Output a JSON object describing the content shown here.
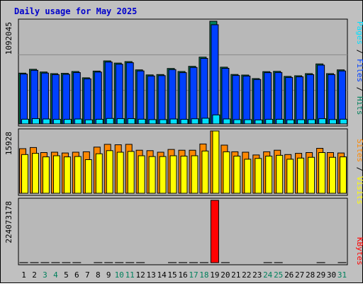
{
  "title": "Daily usage for May 2025",
  "colors": {
    "background": "#c0c0c0",
    "plot_background": "#b8b8b8",
    "title_text": "#0000cc",
    "hits": "#00805c",
    "files": "#0040ff",
    "pages": "#00e0ff",
    "visits": "#ffff00",
    "sites": "#ff8800",
    "kbytes": "#ff0000",
    "weekend_label": "#00805c"
  },
  "legends": {
    "top": [
      {
        "key": "pages",
        "label": "Pages"
      },
      {
        "key": "files",
        "label": "Files"
      },
      {
        "key": "hits",
        "label": "Hits"
      }
    ],
    "middle": [
      {
        "key": "sites",
        "label": "Sites"
      },
      {
        "key": "visits",
        "label": "Visits"
      }
    ],
    "bottom": [
      {
        "key": "kbytes",
        "label": "KBytes"
      }
    ]
  },
  "chart_data": [
    {
      "type": "bar",
      "panel": "hits-files-pages",
      "max_label": "1092045",
      "ylim": [
        0,
        1092045
      ],
      "categories": [
        "1",
        "2",
        "3",
        "4",
        "5",
        "6",
        "7",
        "8",
        "9",
        "10",
        "11",
        "12",
        "13",
        "14",
        "15",
        "16",
        "17",
        "18",
        "19",
        "20",
        "21",
        "22",
        "23",
        "24",
        "25",
        "26",
        "27",
        "28",
        "29",
        "30",
        "31"
      ],
      "weekend_days": [
        "3",
        "4",
        "10",
        "11",
        "17",
        "18",
        "24",
        "25",
        "31"
      ],
      "series": [
        {
          "name": "Hits",
          "color_key": "hits",
          "values": [
            540000,
            581000,
            552000,
            535000,
            538000,
            557000,
            490000,
            562000,
            670000,
            647000,
            663000,
            575000,
            521000,
            525000,
            590000,
            557000,
            612000,
            710000,
            1092045,
            603000,
            526000,
            520000,
            482000,
            556000,
            559000,
            505000,
            512000,
            535000,
            638000,
            535000,
            575000
          ]
        },
        {
          "name": "Files",
          "color_key": "files",
          "values": [
            530000,
            570000,
            541000,
            524000,
            527000,
            546000,
            480000,
            551000,
            658000,
            635000,
            651000,
            563000,
            510000,
            514000,
            578000,
            545000,
            600000,
            697000,
            1055000,
            591000,
            515000,
            509000,
            472000,
            545000,
            547000,
            494000,
            501000,
            524000,
            625000,
            524000,
            563000
          ]
        },
        {
          "name": "Pages",
          "color_key": "pages",
          "values": [
            50000,
            56000,
            52000,
            48000,
            48000,
            52000,
            44000,
            49000,
            58000,
            56000,
            56000,
            50000,
            46000,
            46000,
            52000,
            48000,
            54000,
            60000,
            96000,
            53000,
            46000,
            45000,
            42000,
            48000,
            49000,
            44000,
            45000,
            46000,
            55000,
            47000,
            50000
          ]
        }
      ]
    },
    {
      "type": "bar",
      "panel": "sites-visits",
      "max_label": "15928",
      "ylim": [
        0,
        15928
      ],
      "categories": [
        "1",
        "2",
        "3",
        "4",
        "5",
        "6",
        "7",
        "8",
        "9",
        "10",
        "11",
        "12",
        "13",
        "14",
        "15",
        "16",
        "17",
        "18",
        "19",
        "20",
        "21",
        "22",
        "23",
        "24",
        "25",
        "26",
        "27",
        "28",
        "29",
        "30",
        "31"
      ],
      "series": [
        {
          "name": "Sites",
          "color_key": "sites",
          "values": [
            11400,
            11700,
            10400,
            10500,
            10300,
            10500,
            10600,
            11800,
            12500,
            12400,
            12500,
            11000,
            10900,
            10500,
            11200,
            11000,
            11000,
            12600,
            15928,
            12300,
            10600,
            10500,
            9800,
            10600,
            11000,
            9900,
            10200,
            10400,
            11500,
            10400,
            10300
          ]
        },
        {
          "name": "Visits",
          "color_key": "visits",
          "values": [
            9900,
            10200,
            9300,
            9600,
            9300,
            9400,
            8600,
            10100,
            10900,
            10500,
            10700,
            9600,
            9400,
            9400,
            9600,
            9500,
            9600,
            10800,
            15928,
            10600,
            9500,
            8700,
            8900,
            9500,
            9700,
            8700,
            9000,
            9200,
            10400,
            9200,
            9300
          ]
        }
      ]
    },
    {
      "type": "bar",
      "panel": "kbytes",
      "max_label": "224073178",
      "ylim": [
        0,
        224073178
      ],
      "categories": [
        "1",
        "2",
        "3",
        "4",
        "5",
        "6",
        "7",
        "8",
        "9",
        "10",
        "11",
        "12",
        "13",
        "14",
        "15",
        "16",
        "17",
        "18",
        "19",
        "20",
        "21",
        "22",
        "23",
        "24",
        "25",
        "26",
        "27",
        "28",
        "29",
        "30",
        "31"
      ],
      "series": [
        {
          "name": "KBytes",
          "color_key": "kbytes",
          "values": [
            134000,
            138000,
            131000,
            131000,
            131000,
            134000,
            114000,
            133000,
            157000,
            151000,
            151000,
            131000,
            124000,
            127000,
            131000,
            131000,
            137000,
            152000,
            224073178,
            131000,
            117000,
            117000,
            113000,
            131000,
            134000,
            114000,
            117000,
            123000,
            149000,
            124000,
            131000
          ]
        }
      ]
    }
  ]
}
